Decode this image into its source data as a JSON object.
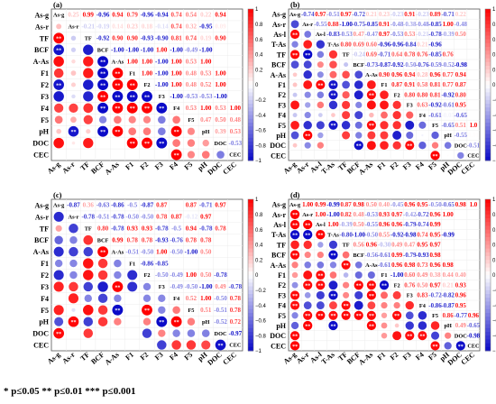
{
  "footnote": "* p≤0.05  ** p≤0.01  *** p≤0.001",
  "colors": {
    "positive": "#ff0000",
    "negative": "#0000cc",
    "neutral": "#ffffff",
    "star": "#ffffff"
  },
  "colorbar": {
    "ticks": [
      "1",
      "0.8",
      "0.6",
      "0.4",
      "0.2",
      "0",
      "−0.2",
      "−0.4",
      "−0.6",
      "−0.8",
      "−1"
    ]
  },
  "chart_data": [
    {
      "type": "heatmap",
      "panel_label": "(a)",
      "variables": [
        "As-g",
        "As-r",
        "TF",
        "BCF",
        "A-As",
        "F1",
        "F2",
        "F3",
        "F4",
        "F5",
        "pH",
        "DOC",
        "CEC"
      ],
      "upper_text": [
        [
          "",
          "0.25",
          "0.99",
          "-0.96",
          "0.94",
          "0.79",
          "-0.96",
          "-0.94",
          "0.74",
          "0.54",
          "0.22",
          "0.94"
        ],
        [
          "",
          "-0.21",
          "-0.19",
          "0.14",
          "0.23",
          "0.18",
          "-0.14",
          "0.74",
          "0.32",
          "-0.95",
          "0.09"
        ],
        [
          "",
          "-0.92",
          "0.90",
          "0.90",
          "-0.93",
          "-0.90",
          "0.81",
          "0.74",
          "0.19",
          "0.90"
        ],
        [
          "",
          "-1.00",
          "-1.00",
          "-1.00",
          "1.00",
          "-1.00",
          "-0.49",
          "-1.00"
        ],
        [
          "",
          "1.00",
          "1.00",
          "-1.00",
          "1.00",
          "0.53",
          "1.00"
        ],
        [
          "",
          "1.00",
          "-1.00",
          "1.00",
          "0.48",
          "0.53",
          "1.00"
        ],
        [
          "",
          "-1.00",
          "1.00",
          "0.48",
          "0.52",
          "1.00"
        ],
        [
          "",
          "-1.00",
          "-0.53",
          "-0.53",
          "-1.00"
        ],
        [
          "",
          "0.53",
          "1.00",
          "0.53",
          "1.00"
        ],
        [
          "",
          "0.47",
          "0.50",
          "0.48"
        ],
        [
          "",
          "0.39",
          "0.53"
        ],
        [
          "",
          "-0.53"
        ],
        []
      ]
    },
    {
      "type": "heatmap",
      "panel_label": "(b)",
      "variables": [
        "As-g",
        "As-r",
        "As-l",
        "T-As",
        "TF",
        "BCF",
        "A-As",
        "F1",
        "F2",
        "F3",
        "F4",
        "F5",
        "pH",
        "DOC",
        "CEC"
      ],
      "upper_text": [
        [
          "",
          "-0.74",
          "0.97",
          "-0.51",
          "0.97",
          "-0.72",
          "0.21",
          "0.23",
          "-0.23",
          "0.91",
          "-0.23",
          "0.89",
          "-0.71",
          "0.22"
        ],
        [
          "",
          "-0.55",
          "0.88",
          "-1.00",
          "-0.75",
          "-0.85",
          "0.91",
          "-0.48",
          "-0.38",
          "-0.48",
          "-0.85",
          "1.00",
          "-0.48"
        ],
        [
          "",
          "-0.83",
          "-0.53",
          "0.47",
          "-0.47",
          "0.97",
          "-0.53",
          "0.53",
          "-0.21",
          "-0.78",
          "-0.39",
          "0.50"
        ],
        [
          "",
          "0.80",
          "0.69",
          "0.60",
          "-0.96",
          "-0.96",
          "-0.84",
          "0.21",
          "-0.96"
        ],
        [
          "",
          "-0.24",
          "0.69",
          "-0.71",
          "0.64",
          "0.78",
          "0.76",
          "-0.85",
          "0.76"
        ],
        [
          "",
          "-0.73",
          "-0.87",
          "-0.92",
          "-0.50",
          "-0.76",
          "-0.59",
          "-0.52",
          "-0.98"
        ],
        [
          "",
          "0.90",
          "0.96",
          "0.94",
          "0.28",
          "0.96",
          "0.77",
          "0.94"
        ],
        [
          "",
          "0.87",
          "0.91",
          "0.58",
          "0.81",
          "0.77",
          "0.87"
        ],
        [
          "",
          "0.80",
          "0.80",
          "0.81",
          "-0.92",
          "0.80"
        ],
        [
          "",
          "0.63",
          "-0.92",
          "-0.61",
          "0.95"
        ],
        [
          "",
          "-0.61",
          "-0.05",
          "-0.65"
        ],
        [
          "",
          "-0.65",
          "0.51",
          "1.0"
        ],
        [
          "",
          "-0.55",
          "0.01"
        ],
        [
          "",
          "-0.51"
        ],
        []
      ]
    },
    {
      "type": "heatmap",
      "panel_label": "(c)",
      "variables": [
        "As-g",
        "As-r",
        "TF",
        "BCF",
        "A-As",
        "F1",
        "F2",
        "F3",
        "F4",
        "F5",
        "pH",
        "DOC",
        "CEC"
      ],
      "upper_text": [
        [
          "",
          "-0.87",
          "0.36",
          "-0.63",
          "-0.86",
          "-0.5",
          "-0.87",
          "0.87",
          "",
          "0.87",
          "-0.71",
          "0.97"
        ],
        [
          "",
          "-0.78",
          "-0.51",
          "-0.78",
          "-0.50",
          "-0.50",
          "0.78",
          "0.87",
          "-0.12",
          "0.97"
        ],
        [
          "",
          "0.80",
          "-0.78",
          "0.93",
          "0.93",
          "-0.78",
          "-0.5",
          "0.94",
          "-0.78",
          "0.78"
        ],
        [
          "",
          "0.99",
          "0.78",
          "0.78",
          "-0.93",
          "-0.76",
          "0.78",
          "0.78"
        ],
        [
          "",
          "-0.51",
          "-0.50",
          "1.00",
          "-0.50",
          "-1.00",
          "0.50"
        ],
        [
          "",
          "-0.86",
          "-0.85",
          "",
          "",
          ""
        ],
        [
          "",
          "-0.50",
          "-0.49",
          "1.00",
          "0.50",
          "-0.78"
        ],
        [
          "",
          "-0.49",
          "-0.50",
          "-1.00",
          "0.49",
          "-0.78"
        ],
        [
          "",
          "0.52",
          "1.00",
          "-0.50",
          "0.78"
        ],
        [
          "",
          "0.51",
          "-0.51",
          "0.78"
        ],
        [
          "",
          "-0.52",
          "0.72"
        ],
        [
          "",
          "-0.97"
        ],
        []
      ]
    },
    {
      "type": "heatmap",
      "panel_label": "(d)",
      "variables": [
        "As-g",
        "As-r",
        "As-l",
        "T-As",
        "TF",
        "BCF",
        "A-As",
        "F1",
        "F2",
        "F3",
        "F4",
        "F5",
        "pH",
        "DOC",
        "CEC"
      ],
      "upper_text": [
        [
          "",
          "1.00",
          "0.99",
          "-0.99",
          "0.87",
          "0.98",
          "0.50",
          "0.40",
          "-0.45",
          "0.96",
          "0.95",
          "-0.50",
          "-0.65",
          "0.98",
          "1.0"
        ],
        [
          "",
          "1.00",
          "-1.00",
          "0.82",
          "0.48",
          "-0.53",
          "0.93",
          "0.97",
          "-0.42",
          "-0.72",
          "0.96",
          "1.00"
        ],
        [
          "",
          "1.00",
          "-0.39",
          "0.50",
          "-0.55",
          "0.96",
          "0.96",
          "-0.79",
          "-0.74",
          "0.99"
        ],
        [
          "",
          "-0.80",
          "-1.00",
          "-0.50",
          "0.55",
          "-0.92",
          "-0.98",
          "0.74",
          "0.95",
          "-0.99"
        ],
        [
          "",
          "0.56",
          "0.96",
          "-0.30",
          "0.49",
          "0.47",
          "0.95",
          "0.97"
        ],
        [
          "",
          "-0.56",
          "-0.61",
          "0.99",
          "-0.79",
          "-0.93",
          "0.98"
        ],
        [
          "",
          "-0.61",
          "0.96",
          "0.98",
          "0.73",
          "0.96",
          "0.98"
        ],
        [
          "",
          "-1.00",
          "0.60",
          "0.49",
          "0.38",
          "0.44",
          "0.40"
        ],
        [
          "",
          "0.76",
          "0.50",
          "0.97",
          "0.21",
          "0.93"
        ],
        [
          "",
          "0.83",
          "-0.72",
          "-0.82",
          "0.96"
        ],
        [
          "",
          "-0.86",
          "-0.87",
          "0.95"
        ],
        [
          "",
          "0.86",
          "-0.77",
          "0.96"
        ],
        [
          "",
          "0.49",
          "-0.65"
        ],
        [
          "",
          "-0.98"
        ],
        []
      ]
    }
  ]
}
